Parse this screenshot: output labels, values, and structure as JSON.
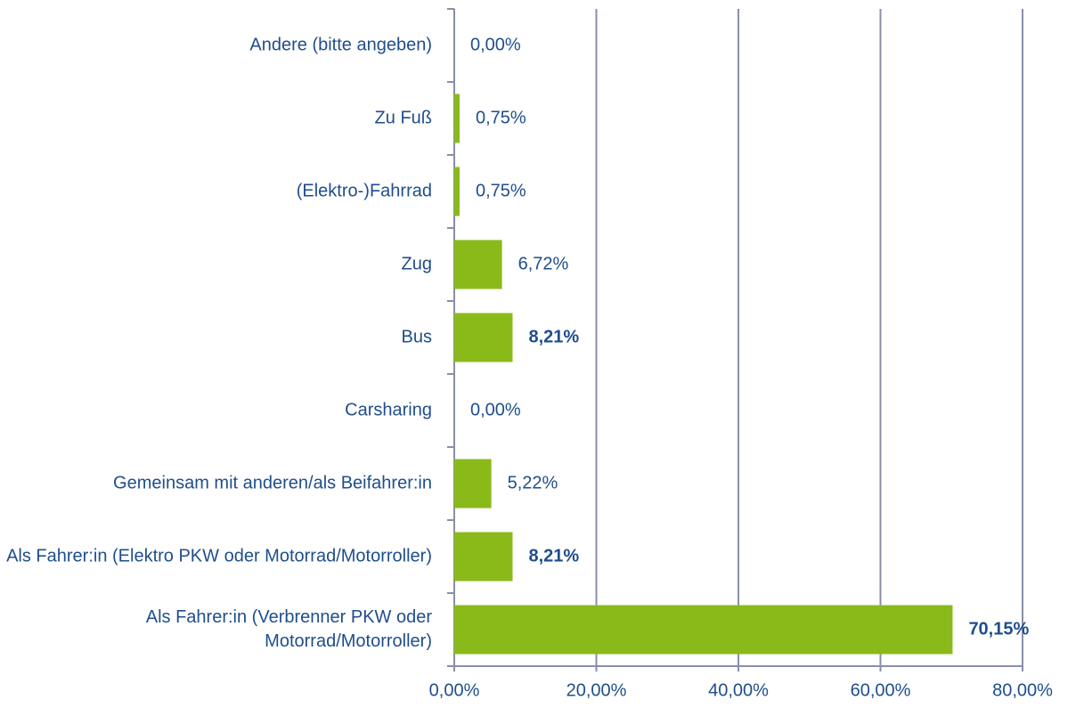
{
  "chart_data": {
    "type": "bar",
    "orientation": "horizontal",
    "categories": [
      "Andere (bitte angeben)",
      "Zu Fuß",
      "(Elektro-)Fahrrad",
      "Zug",
      "Bus",
      "Carsharing",
      "Gemeinsam mit anderen/als Beifahrer:in",
      "Als Fahrer:in (Elektro PKW oder Motorrad/Motorroller)",
      "Als Fahrer:in (Verbrenner PKW oder Motorrad/Motorroller)"
    ],
    "values": [
      0,
      0.75,
      0.75,
      6.72,
      8.21,
      0,
      5.22,
      8.21,
      70.15
    ],
    "value_labels": [
      "0,00%",
      "0,75%",
      "0,75%",
      "6,72%",
      "8,21%",
      "0,00%",
      "5,22%",
      "8,21%",
      "70,15%"
    ],
    "value_label_bold": [
      false,
      false,
      false,
      false,
      true,
      false,
      false,
      true,
      true
    ],
    "color": "#8aba1a",
    "xlim": [
      0,
      80
    ],
    "xticks": [
      {
        "value": 0,
        "label": "0,00%"
      },
      {
        "value": 20,
        "label": "20,00%"
      },
      {
        "value": 40,
        "label": "40,00%"
      },
      {
        "value": 60,
        "label": "60,00%"
      },
      {
        "value": 80,
        "label": "80,00%"
      }
    ],
    "grid": true
  }
}
